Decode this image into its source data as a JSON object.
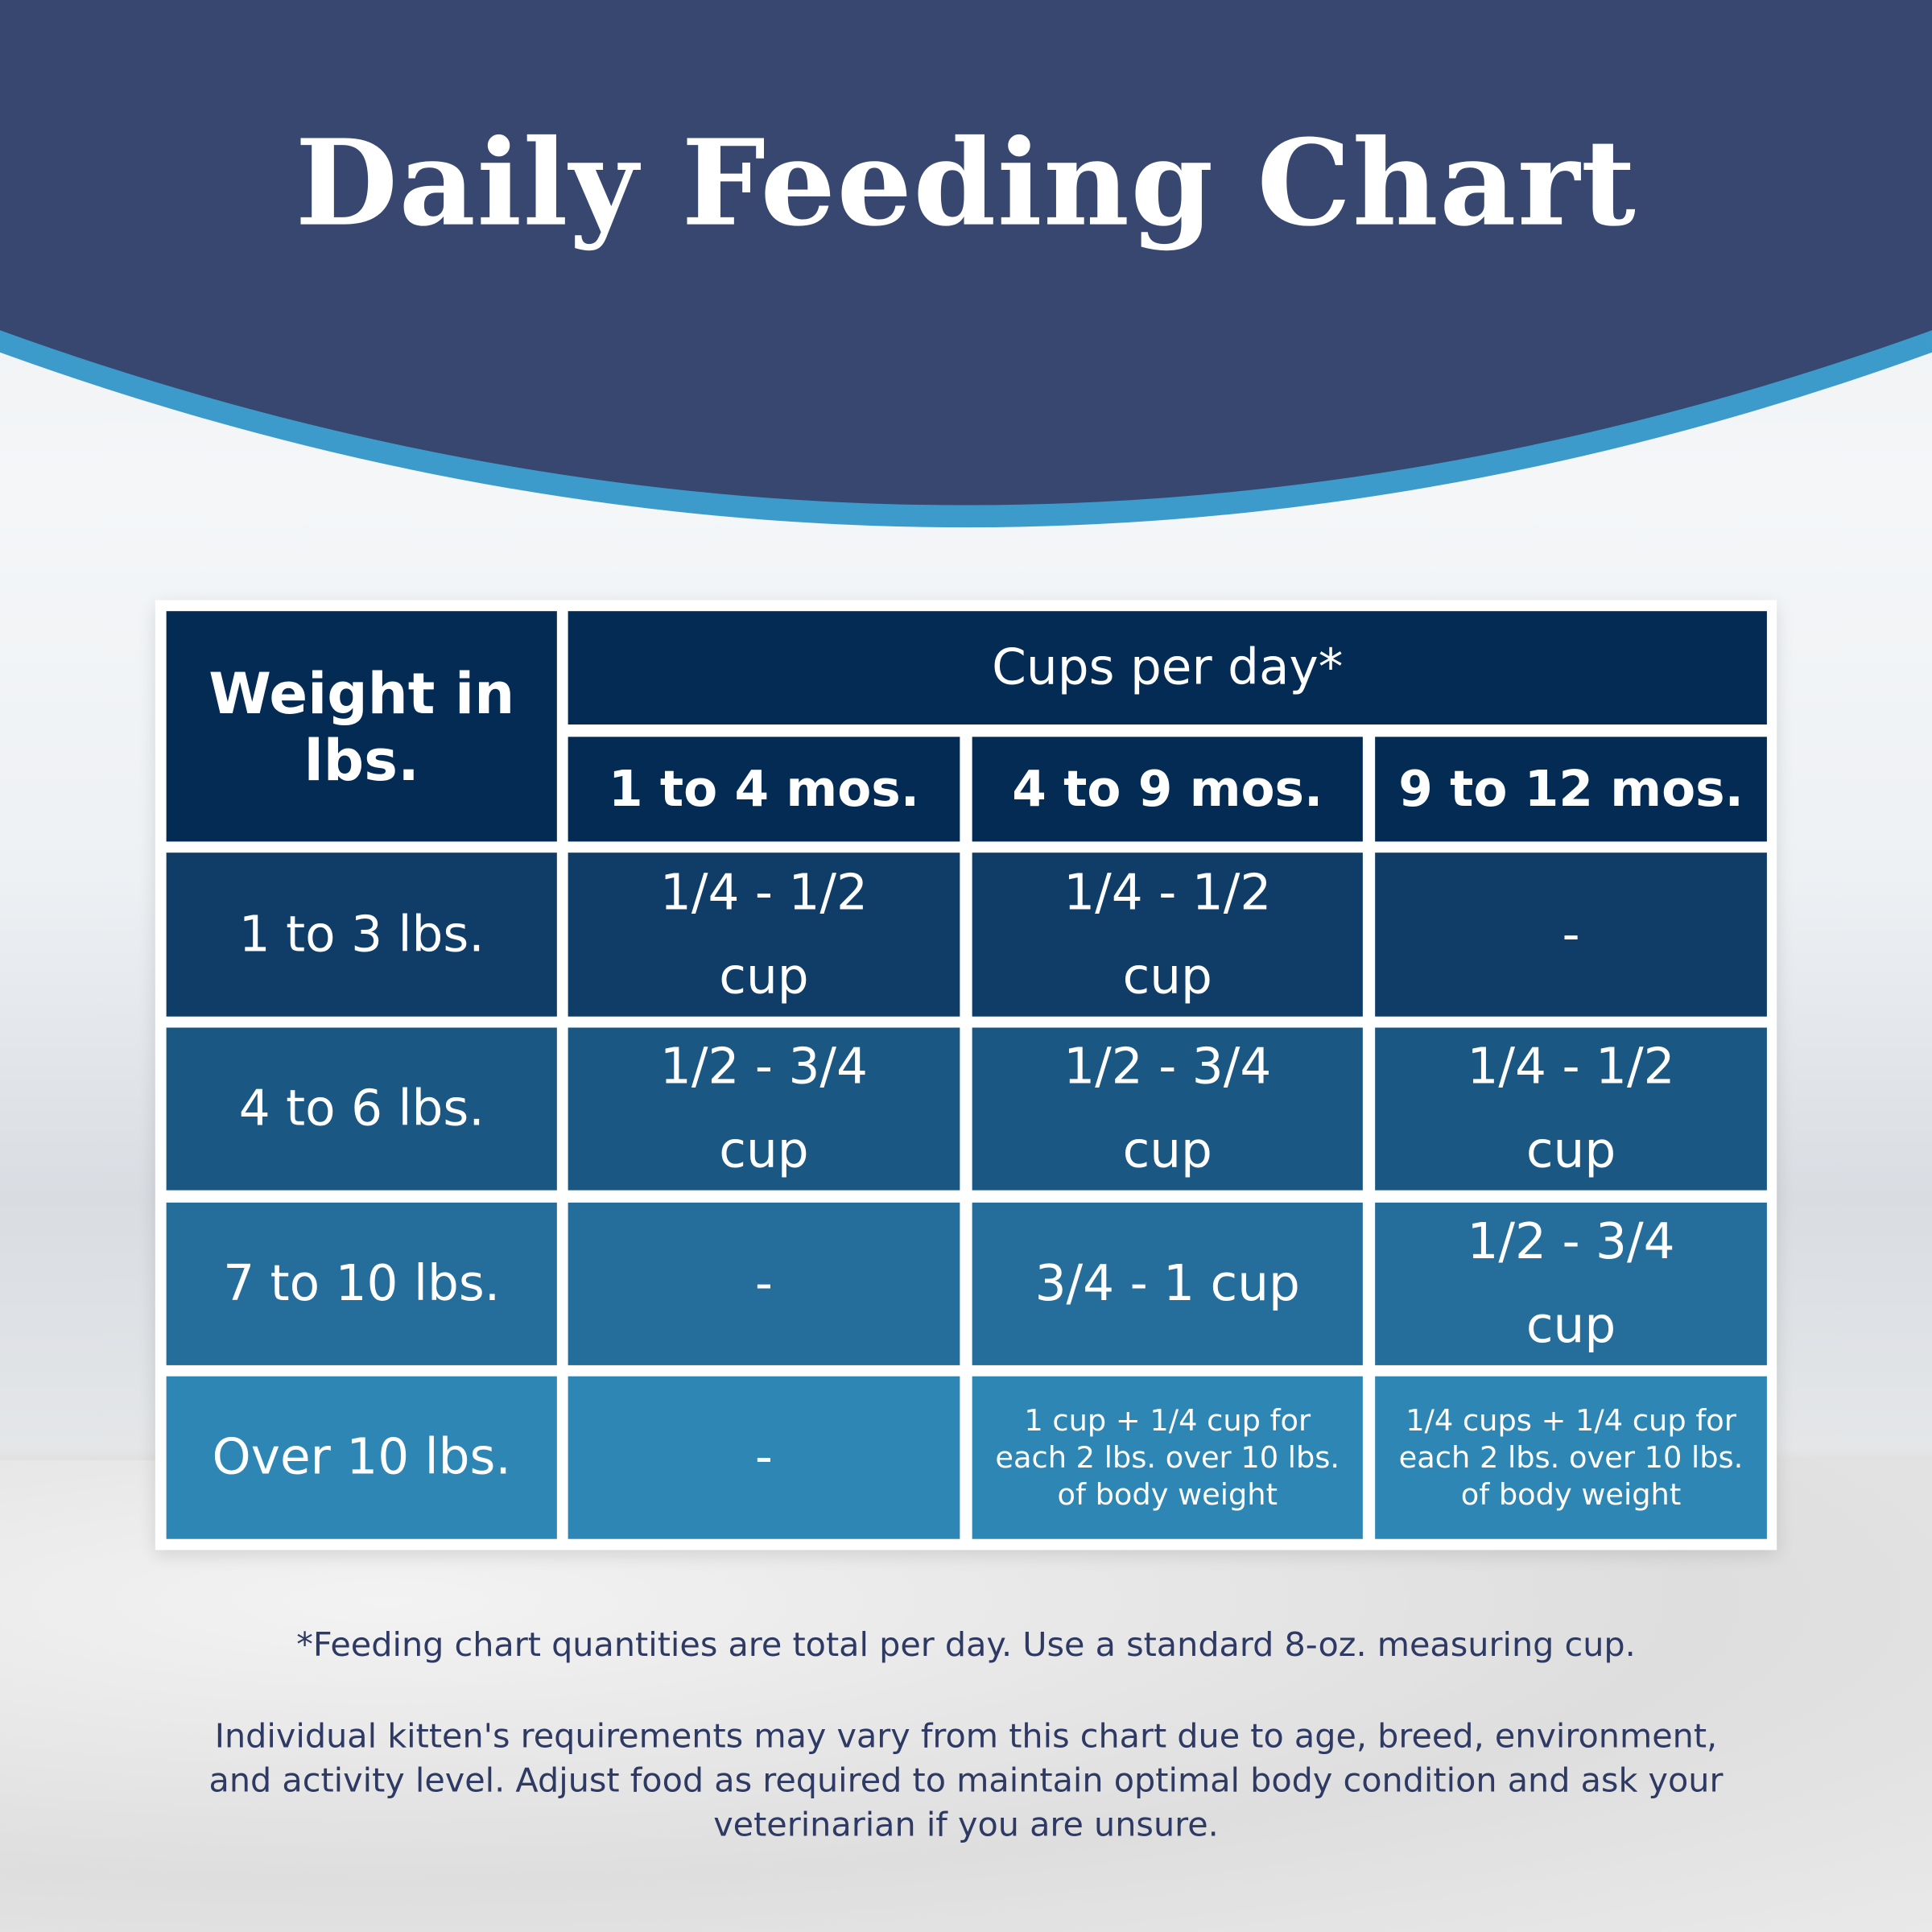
{
  "header": {
    "title": "Daily Feeding Chart"
  },
  "table": {
    "corner": "Weight in lbs.",
    "group_header": "Cups per day*",
    "columns": [
      "1 to 4 mos.",
      "4 to 9 mos.",
      "9 to 12 mos."
    ],
    "rows": [
      [
        "1 to 3 lbs.",
        "1/4 - 1/2 cup",
        "1/4 - 1/2 cup",
        "-"
      ],
      [
        "4 to 6 lbs.",
        "1/2 - 3/4 cup",
        "1/2 - 3/4 cup",
        "1/4 - 1/2 cup"
      ],
      [
        "7 to 10 lbs.",
        "-",
        "3/4 - 1 cup",
        "1/2 - 3/4 cup"
      ],
      [
        "Over 10 lbs.",
        "-",
        "1 cup + 1/4 cup for each 2 lbs. over 10 lbs. of body weight",
        "1/4 cups + 1/4 cup for each 2 lbs. over 10 lbs. of body weight"
      ]
    ]
  },
  "footnotes": [
    "*Feeding chart quantities are total per day. Use a standard 8-oz. measuring cup.",
    "Individual kitten's requirements may vary from this chart due to age, breed, environment, and activity level. Adjust food as required to maintain optimal body condition and ask your veterinarian if you are unsure."
  ]
}
